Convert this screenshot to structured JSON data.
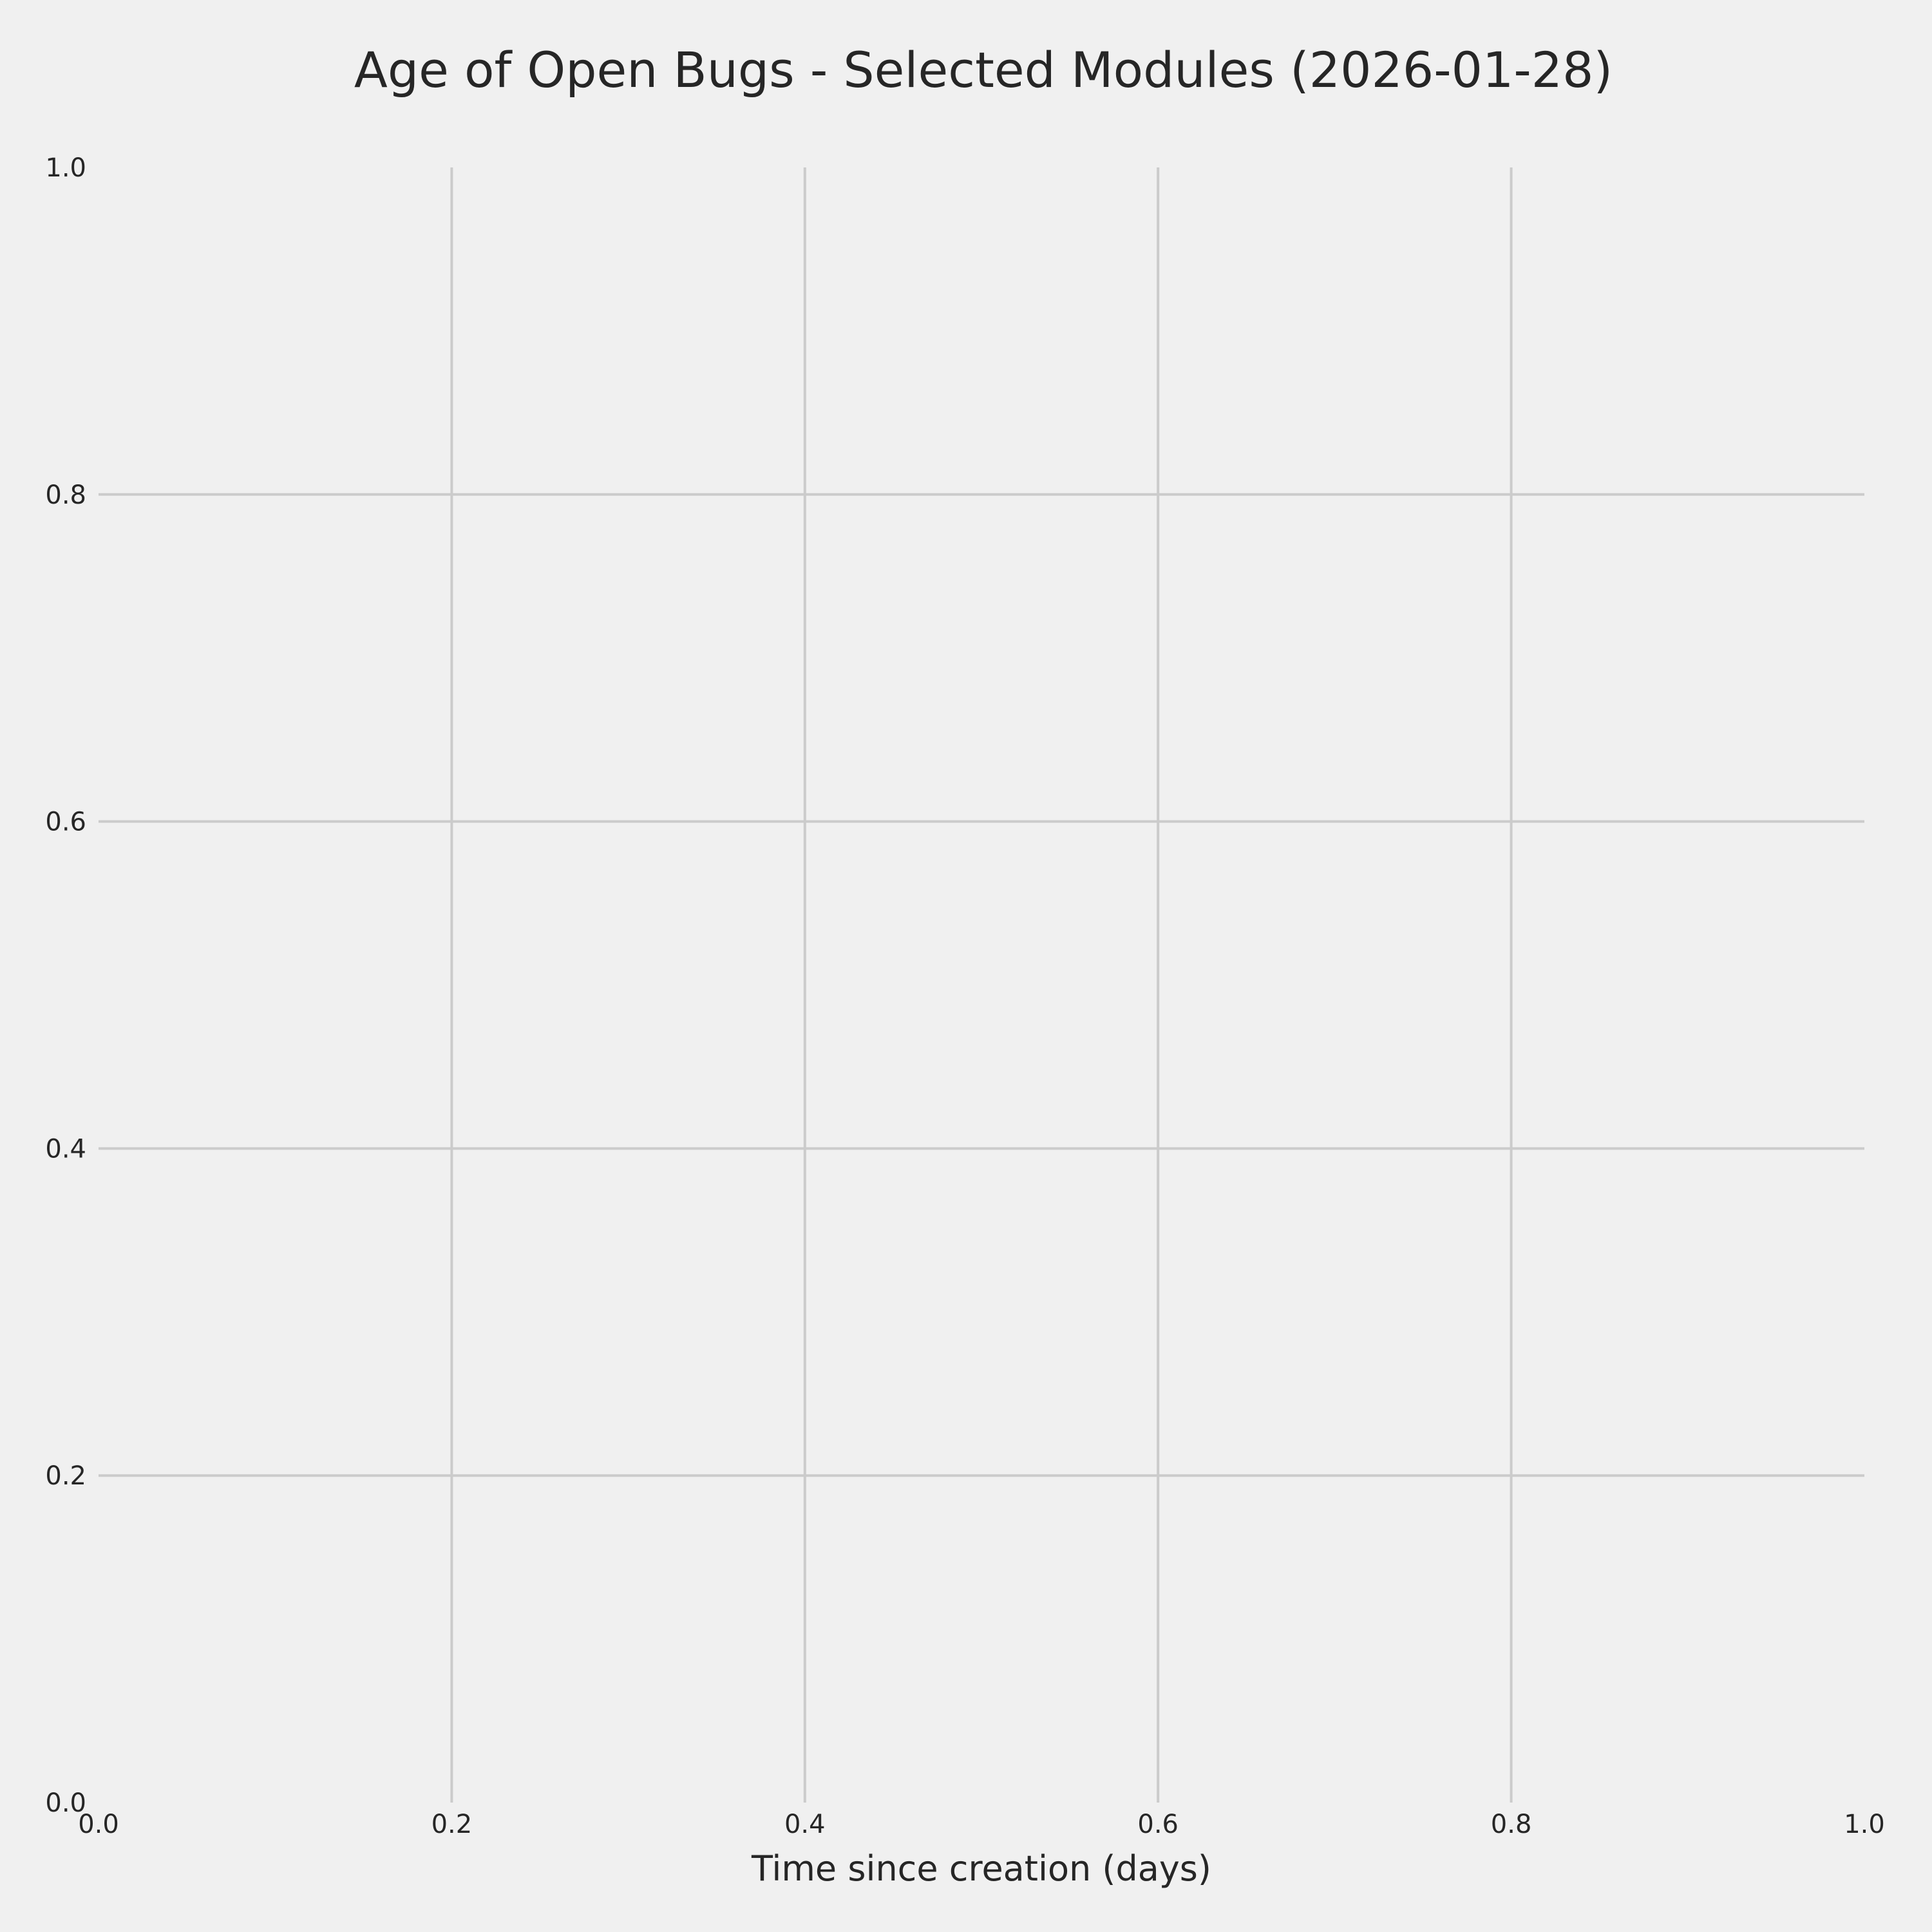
{
  "chart_data": {
    "type": "line",
    "title": "Age of Open Bugs - Selected Modules (2026-01-28)",
    "xlabel": "Time since creation (days)",
    "ylabel": "",
    "xlim": [
      0.0,
      1.0
    ],
    "ylim": [
      0.0,
      1.0
    ],
    "xticks": [
      "0.0",
      "0.2",
      "0.4",
      "0.6",
      "0.8",
      "1.0"
    ],
    "yticks": [
      "0.0",
      "0.2",
      "0.4",
      "0.6",
      "0.8",
      "1.0"
    ],
    "grid": true,
    "series": [],
    "colors": {
      "background": "#f0f0f0",
      "grid": "#cbcbcb",
      "text": "#262626"
    }
  }
}
